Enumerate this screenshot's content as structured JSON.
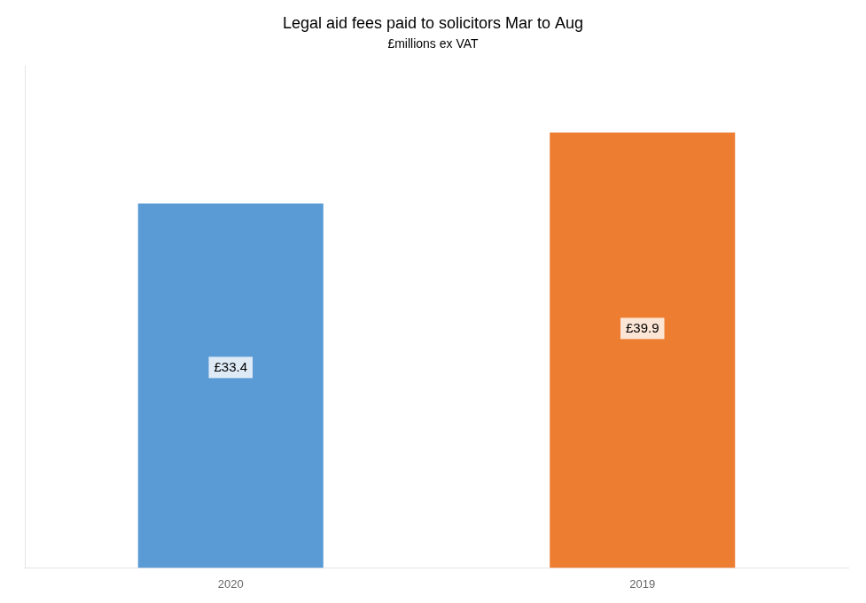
{
  "chart_data": {
    "type": "bar",
    "title": "Legal aid fees paid to solicitors Mar to Aug",
    "subtitle": "£millions ex VAT",
    "categories": [
      "2020",
      "2019"
    ],
    "values": [
      33.4,
      39.9
    ],
    "value_labels": [
      "£33.4",
      "£39.9"
    ],
    "colors": [
      "#5B9BD5",
      "#ED7D31"
    ],
    "data_labels": true,
    "ylim": [
      0,
      46
    ],
    "tick_labels": "x",
    "grid": false
  }
}
